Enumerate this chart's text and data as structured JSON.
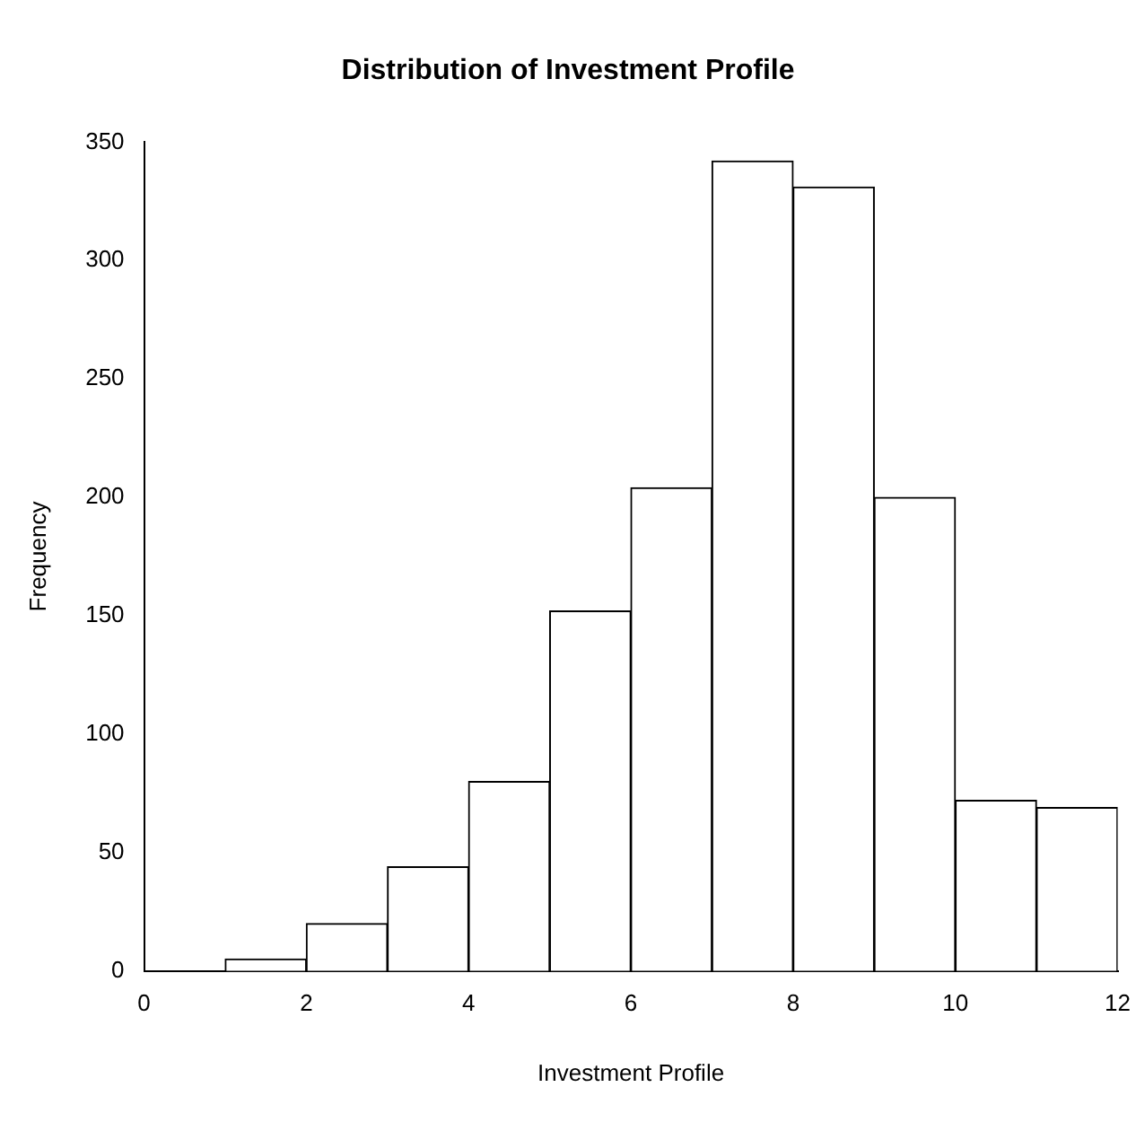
{
  "chart_data": {
    "type": "histogram",
    "title": "Distribution of Investment Profile",
    "xlabel": "Investment Profile",
    "ylabel": "Frequency",
    "bins": [
      1,
      2,
      3,
      4,
      5,
      6,
      7,
      8,
      9,
      10,
      11,
      12
    ],
    "values": [
      5,
      20,
      44,
      80,
      152,
      204,
      342,
      331,
      200,
      72,
      69
    ],
    "color": "#ffffff",
    "xlim": [
      0,
      12
    ],
    "xticks": [
      0,
      2,
      4,
      6,
      8,
      10,
      12
    ],
    "ylim": [
      0,
      350
    ],
    "yticks": [
      0,
      50,
      100,
      150,
      200,
      250,
      300,
      350
    ],
    "grid": false,
    "legend": false
  }
}
